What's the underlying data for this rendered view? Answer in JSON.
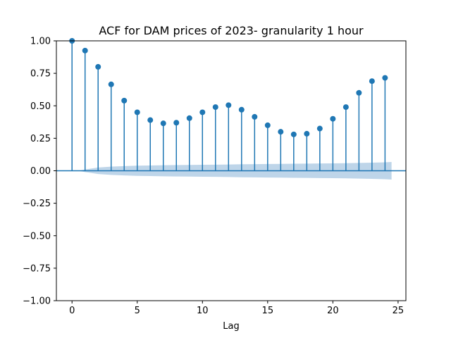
{
  "chart_data": {
    "type": "scatter",
    "title": "ACF for DAM prices of 2023- granularity 1 hour",
    "xlabel": "Lag",
    "ylabel": "",
    "xlim": [
      -1.2,
      25.6
    ],
    "ylim": [
      -1.0,
      1.0
    ],
    "xticks": [
      0,
      5,
      10,
      15,
      20,
      25
    ],
    "xtick_labels": [
      "0",
      "5",
      "10",
      "15",
      "20",
      "25"
    ],
    "yticks": [
      -1.0,
      -0.75,
      -0.5,
      -0.25,
      0.0,
      0.25,
      0.5,
      0.75,
      1.0
    ],
    "ytick_labels": [
      "−1.00",
      "−0.75",
      "−0.50",
      "−0.25",
      "0.00",
      "0.25",
      "0.50",
      "0.75",
      "1.00"
    ],
    "grid": false,
    "lags": [
      0,
      1,
      2,
      3,
      4,
      5,
      6,
      7,
      8,
      9,
      10,
      11,
      12,
      13,
      14,
      15,
      16,
      17,
      18,
      19,
      20,
      21,
      22,
      23,
      24
    ],
    "acf": [
      1.0,
      0.925,
      0.8,
      0.665,
      0.54,
      0.45,
      0.39,
      0.365,
      0.37,
      0.405,
      0.45,
      0.49,
      0.505,
      0.47,
      0.415,
      0.35,
      0.3,
      0.28,
      0.285,
      0.325,
      0.4,
      0.49,
      0.6,
      0.69,
      0.715
    ],
    "confidence_band": {
      "lags": [
        0.5,
        1,
        2,
        3,
        4,
        5,
        6,
        7,
        8,
        9,
        10,
        11,
        12,
        13,
        14,
        15,
        16,
        17,
        18,
        19,
        20,
        21,
        22,
        23,
        24,
        24.5
      ],
      "upper": [
        0.0,
        0.01,
        0.025,
        0.032,
        0.036,
        0.039,
        0.041,
        0.043,
        0.044,
        0.045,
        0.046,
        0.047,
        0.048,
        0.05,
        0.051,
        0.052,
        0.053,
        0.054,
        0.055,
        0.056,
        0.057,
        0.058,
        0.06,
        0.062,
        0.065,
        0.068
      ],
      "lower": [
        0.0,
        -0.01,
        -0.025,
        -0.032,
        -0.036,
        -0.039,
        -0.041,
        -0.043,
        -0.044,
        -0.045,
        -0.046,
        -0.047,
        -0.048,
        -0.05,
        -0.051,
        -0.052,
        -0.053,
        -0.054,
        -0.055,
        -0.056,
        -0.057,
        -0.058,
        -0.06,
        -0.062,
        -0.065,
        -0.068
      ]
    },
    "colors": {
      "stem": "#1f77b4",
      "band": "#aecae4",
      "zero_line": "#1f77b4"
    }
  }
}
